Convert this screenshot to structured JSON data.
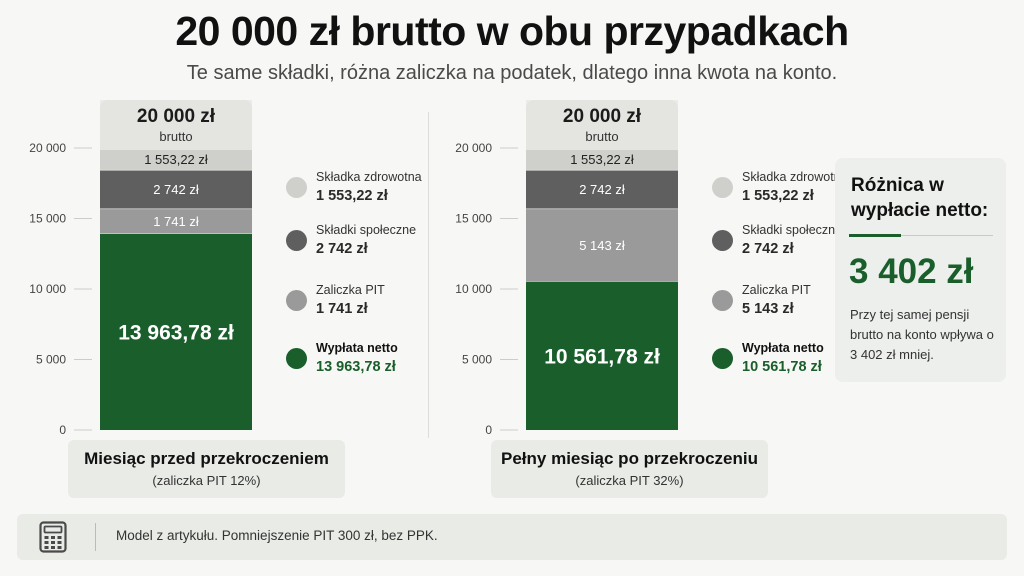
{
  "title": "20 000 zł brutto w obu przypadkach",
  "subtitle": "Te same składki, różna zaliczka na podatek, dlatego inna kwota na konto.",
  "colors": {
    "zdrowotna": "#cfcfcb",
    "spoleczne": "#5f5f5f",
    "pit": "#9a9a9a",
    "netto": "#1a5e2c"
  },
  "chart_data": [
    {
      "type": "bar",
      "stacked": true,
      "y_ticks": [
        "20 000",
        "15 000",
        "10 000",
        "5 000",
        "0"
      ],
      "ylim": [
        0,
        20000
      ],
      "gross_value": "20 000 zł",
      "gross_label": "brutto",
      "category_title": "Miesiąc przed przekroczeniem",
      "category_subtitle": "(zaliczka PIT 12%)",
      "segments": [
        {
          "key": "netto",
          "name": "Wypłata netto",
          "value": 13963.78,
          "label": "13 963,78 zł"
        },
        {
          "key": "pit",
          "name": "Zaliczka PIT",
          "value": 1741,
          "label": "1 741 zł"
        },
        {
          "key": "spoleczne",
          "name": "Składki społeczne",
          "value": 2742,
          "label": "2 742 zł"
        },
        {
          "key": "zdrowotna",
          "name": "Składka zdrowotna",
          "value": 1553.22,
          "label": "1 553,22 zł"
        }
      ]
    },
    {
      "type": "bar",
      "stacked": true,
      "y_ticks": [
        "20 000",
        "15 000",
        "10 000",
        "5 000",
        "0"
      ],
      "ylim": [
        0,
        20000
      ],
      "gross_value": "20 000 zł",
      "gross_label": "brutto",
      "category_title": "Pełny miesiąc po przekroczeniu",
      "category_subtitle": "(zaliczka PIT 32%)",
      "segments": [
        {
          "key": "netto",
          "name": "Wypłata netto",
          "value": 10561.78,
          "label": "10 561,78 zł"
        },
        {
          "key": "pit",
          "name": "Zaliczka PIT",
          "value": 5143,
          "label": "5 143 zł"
        },
        {
          "key": "spoleczne",
          "name": "Składki społeczne",
          "value": 2742,
          "label": "2 742 zł"
        },
        {
          "key": "zdrowotna",
          "name": "Składka zdrowotna",
          "value": 1553.22,
          "label": "1 553,22 zł"
        }
      ]
    }
  ],
  "difference": {
    "title": "Różnica w wypłacie netto:",
    "value": "3 402 zł",
    "note": "Przy tej samej pensji brutto na konto wpływa o 3 402 zł mniej."
  },
  "footer": {
    "icon": "calculator-icon",
    "text": "Model z artykułu. Pomniejszenie PIT 300 zł, bez PPK."
  }
}
